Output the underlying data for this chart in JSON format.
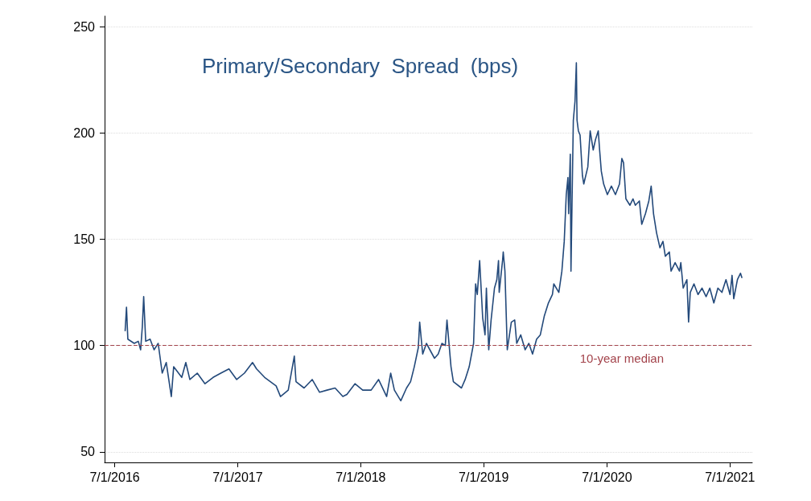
{
  "chart_data": {
    "type": "line",
    "title": "Primary/Secondary  Spread  (bps)",
    "x": [
      "2016-08-01",
      "2016-08-05",
      "2016-08-09",
      "2016-08-28",
      "2016-09-09",
      "2016-09-16",
      "2016-09-21",
      "2016-09-25",
      "2016-10-01",
      "2016-10-14",
      "2016-10-26",
      "2016-11-07",
      "2016-11-19",
      "2016-12-01",
      "2016-12-16",
      "2016-12-23",
      "2017-01-16",
      "2017-01-28",
      "2017-02-09",
      "2017-03-03",
      "2017-03-26",
      "2017-04-19",
      "2017-05-12",
      "2017-06-05",
      "2017-06-28",
      "2017-07-21",
      "2017-08-14",
      "2017-08-26",
      "2017-09-19",
      "2017-10-23",
      "2017-11-05",
      "2017-11-28",
      "2017-12-16",
      "2017-12-21",
      "2018-01-14",
      "2018-02-07",
      "2018-03-01",
      "2018-03-23",
      "2018-04-16",
      "2018-05-09",
      "2018-05-21",
      "2018-06-14",
      "2018-07-07",
      "2018-08-01",
      "2018-08-23",
      "2018-09-16",
      "2018-09-28",
      "2018-10-09",
      "2018-10-28",
      "2018-11-14",
      "2018-11-26",
      "2018-12-07",
      "2018-12-19",
      "2018-12-23",
      "2019-01-01",
      "2019-01-12",
      "2019-02-05",
      "2019-02-16",
      "2019-02-27",
      "2019-03-09",
      "2019-03-14",
      "2019-03-26",
      "2019-04-02",
      "2019-04-26",
      "2019-05-07",
      "2019-05-19",
      "2019-06-01",
      "2019-06-07",
      "2019-06-12",
      "2019-06-19",
      "2019-06-28",
      "2019-07-05",
      "2019-07-09",
      "2019-07-16",
      "2019-07-23",
      "2019-08-02",
      "2019-08-09",
      "2019-08-14",
      "2019-08-16",
      "2019-08-26",
      "2019-08-28",
      "2019-09-02",
      "2019-09-09",
      "2019-09-21",
      "2019-10-01",
      "2019-10-07",
      "2019-10-19",
      "2019-11-01",
      "2019-11-12",
      "2019-11-23",
      "2019-12-05",
      "2019-12-16",
      "2019-12-28",
      "2020-01-09",
      "2020-01-21",
      "2020-01-25",
      "2020-02-09",
      "2020-02-18",
      "2020-02-25",
      "2020-03-02",
      "2020-03-07",
      "2020-03-09",
      "2020-03-14",
      "2020-03-16",
      "2020-03-21",
      "2020-03-23",
      "2020-03-28",
      "2020-04-01",
      "2020-04-03",
      "2020-04-07",
      "2020-04-12",
      "2020-04-19",
      "2020-04-23",
      "2020-05-05",
      "2020-05-12",
      "2020-05-21",
      "2020-05-28",
      "2020-06-05",
      "2020-06-09",
      "2020-06-14",
      "2020-06-21",
      "2020-07-02",
      "2020-07-14",
      "2020-07-26",
      "2020-08-07",
      "2020-08-14",
      "2020-08-19",
      "2020-08-26",
      "2020-09-07",
      "2020-09-16",
      "2020-09-23",
      "2020-10-05",
      "2020-10-12",
      "2020-10-23",
      "2020-11-02",
      "2020-11-09",
      "2020-11-16",
      "2020-11-25",
      "2020-12-05",
      "2020-12-14",
      "2020-12-21",
      "2021-01-02",
      "2021-01-07",
      "2021-01-19",
      "2021-02-01",
      "2021-02-05",
      "2021-02-12",
      "2021-02-23",
      "2021-02-28",
      "2021-03-05",
      "2021-03-16",
      "2021-03-28",
      "2021-04-09",
      "2021-04-21",
      "2021-05-02",
      "2021-05-14",
      "2021-05-26",
      "2021-06-07",
      "2021-06-19",
      "2021-07-01",
      "2021-07-07",
      "2021-07-12",
      "2021-07-23",
      "2021-08-01",
      "2021-08-05"
    ],
    "series": [
      {
        "color": "#23497a",
        "values": [
          107,
          118,
          103,
          101,
          102,
          98,
          109,
          123,
          102,
          103,
          98,
          101,
          87,
          92,
          76,
          90,
          85,
          92,
          84,
          87,
          82,
          85,
          87,
          89,
          84,
          87,
          92,
          89,
          85,
          81,
          76,
          79,
          95,
          83,
          80,
          84,
          78,
          79,
          80,
          76,
          77,
          82,
          79,
          79,
          84,
          76,
          87,
          79,
          74,
          80,
          83,
          90,
          99,
          111,
          96,
          101,
          94,
          96,
          101,
          100,
          112,
          90,
          83,
          80,
          84,
          90,
          101,
          129,
          124,
          140,
          113,
          105,
          127,
          98,
          112,
          127,
          131,
          140,
          125,
          140,
          144,
          135,
          98,
          111,
          112,
          101,
          105,
          98,
          101,
          96,
          103,
          105,
          114,
          120,
          124,
          129,
          125,
          135,
          149,
          171,
          179,
          162,
          190,
          135,
          186,
          206,
          215,
          233,
          206,
          201,
          199,
          180,
          176,
          184,
          201,
          192,
          197,
          201,
          192,
          182,
          176,
          171,
          175,
          171,
          176,
          188,
          186,
          169,
          166,
          169,
          166,
          168,
          157,
          162,
          168,
          175,
          162,
          153,
          146,
          149,
          142,
          144,
          135,
          139,
          135,
          139,
          127,
          131,
          111,
          125,
          129,
          124,
          127,
          123,
          127,
          120,
          127,
          125,
          131,
          124,
          133,
          122,
          131,
          134,
          132
        ]
      }
    ],
    "xlim": [
      "2016-06-01",
      "2021-09-05"
    ],
    "xticks": [
      {
        "value": "2016-07-01",
        "label": "7/1/2016"
      },
      {
        "value": "2017-07-01",
        "label": "7/1/2017"
      },
      {
        "value": "2018-07-01",
        "label": "7/1/2018"
      },
      {
        "value": "2019-07-01",
        "label": "7/1/2019"
      },
      {
        "value": "2020-07-01",
        "label": "7/1/2020"
      },
      {
        "value": "2021-07-01",
        "label": "7/1/2021"
      }
    ],
    "ylim": [
      45,
      255
    ],
    "yticks": [
      50,
      100,
      150,
      200,
      250
    ],
    "grid": "y",
    "marker": "none",
    "line_style": "solid",
    "ref_lines": [
      {
        "axis": "y",
        "value": 100,
        "label": "10-year median",
        "color": "#a3434b",
        "line_style": "dashed"
      }
    ]
  }
}
